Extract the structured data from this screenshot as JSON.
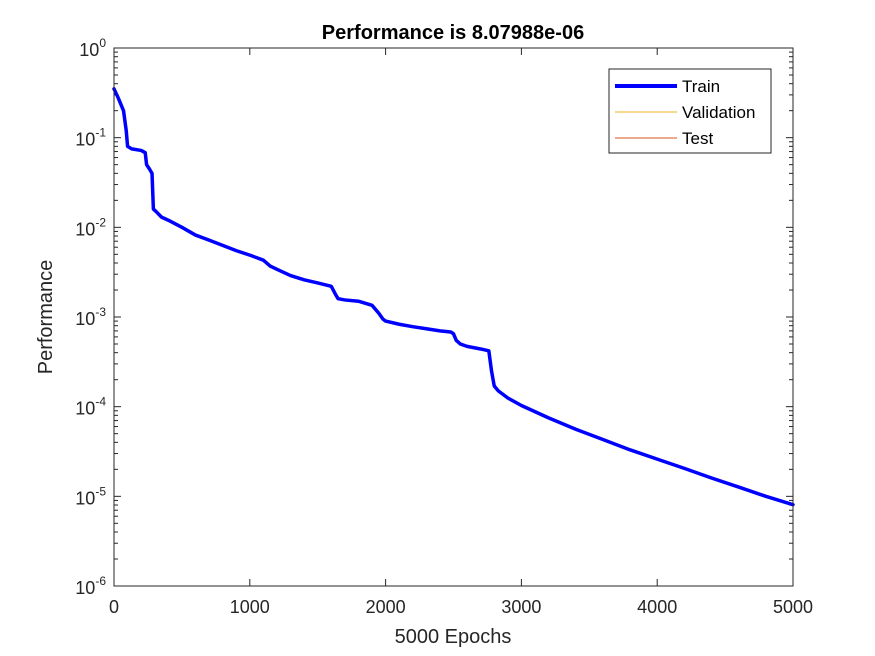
{
  "chart_data": {
    "type": "line",
    "title": "Performance is 8.07988e-06",
    "xlabel": "5000 Epochs",
    "ylabel": "Performance",
    "xlim": [
      0,
      5000
    ],
    "ylim": [
      1e-06,
      1
    ],
    "yscale": "log",
    "x_ticks": [
      "0",
      "1000",
      "2000",
      "3000",
      "4000",
      "5000"
    ],
    "x_tick_values": [
      0,
      1000,
      2000,
      3000,
      4000,
      5000
    ],
    "y_ticks": [
      {
        "base": "10",
        "exp": "-6",
        "value": 1e-06
      },
      {
        "base": "10",
        "exp": "-5",
        "value": 1e-05
      },
      {
        "base": "10",
        "exp": "-4",
        "value": 0.0001
      },
      {
        "base": "10",
        "exp": "-3",
        "value": 0.001
      },
      {
        "base": "10",
        "exp": "-2",
        "value": 0.01
      },
      {
        "base": "10",
        "exp": "-1",
        "value": 0.1
      },
      {
        "base": "10",
        "exp": "0",
        "value": 1
      }
    ],
    "grid": false,
    "legend_position": "top-right",
    "legend": [
      "Train",
      "Validation",
      "Test"
    ],
    "series": [
      {
        "name": "Train",
        "color": "#0000ff",
        "x": [
          0,
          30,
          70,
          90,
          100,
          130,
          200,
          230,
          240,
          260,
          280,
          290,
          310,
          350,
          400,
          500,
          600,
          700,
          800,
          900,
          1000,
          1100,
          1150,
          1200,
          1300,
          1400,
          1500,
          1600,
          1630,
          1650,
          1700,
          1800,
          1900,
          1950,
          1980,
          2000,
          2100,
          2200,
          2300,
          2400,
          2480,
          2500,
          2520,
          2550,
          2600,
          2700,
          2760,
          2780,
          2800,
          2830,
          2900,
          3000,
          3200,
          3400,
          3600,
          3800,
          4000,
          4200,
          4400,
          4600,
          4800,
          5000
        ],
        "y": [
          0.35,
          0.28,
          0.2,
          0.12,
          0.08,
          0.075,
          0.072,
          0.068,
          0.05,
          0.045,
          0.04,
          0.016,
          0.015,
          0.013,
          0.012,
          0.01,
          0.0082,
          0.0072,
          0.0063,
          0.0055,
          0.0049,
          0.0043,
          0.0037,
          0.0034,
          0.0029,
          0.0026,
          0.0024,
          0.0022,
          0.0018,
          0.0016,
          0.00155,
          0.0015,
          0.00135,
          0.0011,
          0.00095,
          0.0009,
          0.00083,
          0.00078,
          0.00074,
          0.0007,
          0.00068,
          0.00065,
          0.00055,
          0.0005,
          0.00047,
          0.00044,
          0.00042,
          0.00025,
          0.00017,
          0.00015,
          0.000125,
          0.000103,
          7.5e-05,
          5.6e-05,
          4.3e-05,
          3.3e-05,
          2.6e-05,
          2.05e-05,
          1.6e-05,
          1.27e-05,
          1e-05,
          8.07988e-06
        ]
      },
      {
        "name": "Validation",
        "color": "#edb120",
        "x": [],
        "y": []
      },
      {
        "name": "Test",
        "color": "#d95319",
        "x": [],
        "y": []
      }
    ]
  }
}
